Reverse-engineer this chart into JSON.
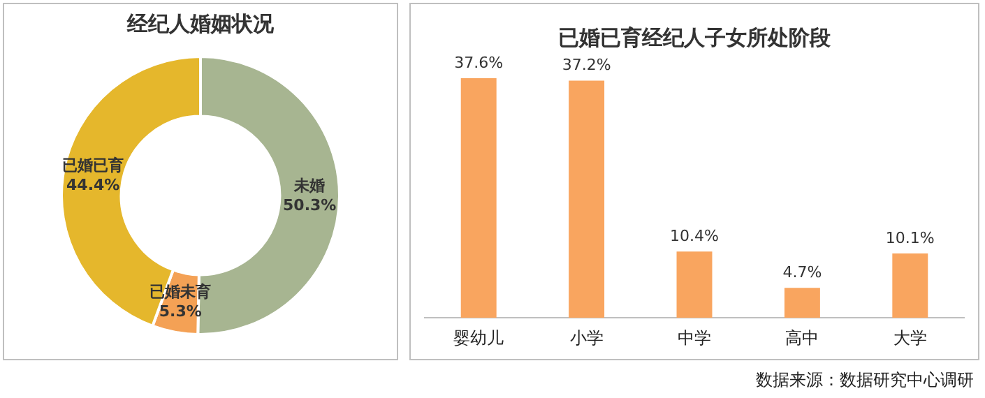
{
  "chart_data": [
    {
      "type": "donut",
      "title": "经纪人婚姻状况",
      "categories": [
        "未婚",
        "已婚未育",
        "已婚已育"
      ],
      "values": [
        50.3,
        5.3,
        44.4
      ],
      "colors": [
        "#a7b591",
        "#f4a155",
        "#e5b72c"
      ],
      "value_labels": [
        "50.3%",
        "5.3%",
        "44.4%"
      ],
      "legend": false
    },
    {
      "type": "bar",
      "title": "已婚已育经纪人子女所处阶段",
      "categories": [
        "婴幼儿",
        "小学",
        "中学",
        "高中",
        "大学"
      ],
      "values": [
        37.6,
        37.2,
        10.4,
        4.7,
        10.1
      ],
      "color": "#f9a55f",
      "value_labels": [
        "37.6%",
        "37.2%",
        "10.4%",
        "4.7%",
        "10.1%"
      ],
      "grid": false,
      "legend": false,
      "annotations": [
        "数据来源：数据研究中心调研"
      ]
    }
  ]
}
